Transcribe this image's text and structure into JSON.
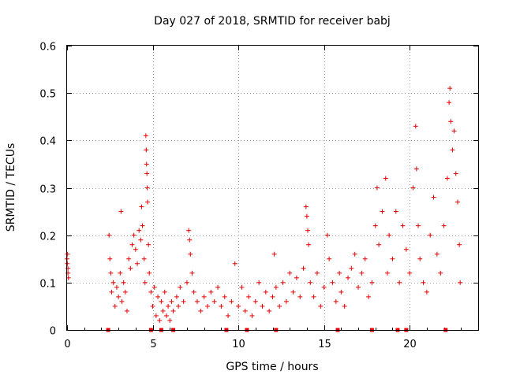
{
  "chart_data": {
    "type": "scatter",
    "title": "Day 027 of 2018, SRMTID for receiver babj",
    "xlabel": "GPS time / hours",
    "ylabel": "SRMTID / TECUs",
    "xlim": [
      0,
      24
    ],
    "ylim": [
      0,
      0.6
    ],
    "x_ticks": [
      0,
      5,
      10,
      15,
      20
    ],
    "y_ticks": [
      0,
      0.1,
      0.2,
      0.3,
      0.4,
      0.5,
      0.6
    ],
    "x_tick_labels": [
      "0",
      "5",
      "10",
      "15",
      "20"
    ],
    "y_tick_labels": [
      "0",
      "0.1",
      "0.2",
      "0.3",
      "0.4",
      "0.5",
      "0.6"
    ],
    "grid": true,
    "marker": "+",
    "marker_color": "#e60000",
    "series": [
      {
        "name": "SRMTID",
        "points": [
          [
            0.0,
            0.15
          ],
          [
            0.02,
            0.14
          ],
          [
            0.05,
            0.12
          ],
          [
            0.05,
            0.13
          ],
          [
            0.08,
            0.11
          ],
          [
            0.03,
            0.16
          ],
          [
            2.45,
            0.2
          ],
          [
            2.5,
            0.15
          ],
          [
            2.55,
            0.12
          ],
          [
            2.6,
            0.08
          ],
          [
            2.7,
            0.1
          ],
          [
            2.8,
            0.05
          ],
          [
            2.9,
            0.09
          ],
          [
            3.0,
            0.07
          ],
          [
            3.1,
            0.12
          ],
          [
            3.15,
            0.25
          ],
          [
            3.2,
            0.06
          ],
          [
            3.3,
            0.1
          ],
          [
            3.4,
            0.08
          ],
          [
            3.5,
            0.04
          ],
          [
            3.6,
            0.15
          ],
          [
            3.7,
            0.13
          ],
          [
            3.8,
            0.18
          ],
          [
            3.9,
            0.2
          ],
          [
            4.0,
            0.17
          ],
          [
            4.1,
            0.14
          ],
          [
            4.2,
            0.21
          ],
          [
            4.3,
            0.19
          ],
          [
            4.35,
            0.26
          ],
          [
            4.4,
            0.22
          ],
          [
            4.5,
            0.15
          ],
          [
            4.55,
            0.1
          ],
          [
            4.6,
            0.41
          ],
          [
            4.62,
            0.38
          ],
          [
            4.64,
            0.35
          ],
          [
            4.66,
            0.33
          ],
          [
            4.68,
            0.3
          ],
          [
            4.7,
            0.27
          ],
          [
            4.75,
            0.18
          ],
          [
            4.8,
            0.12
          ],
          [
            4.9,
            0.08
          ],
          [
            5.0,
            0.05
          ],
          [
            5.1,
            0.09
          ],
          [
            5.2,
            0.03
          ],
          [
            5.3,
            0.07
          ],
          [
            5.4,
            0.02
          ],
          [
            5.5,
            0.06
          ],
          [
            5.6,
            0.04
          ],
          [
            5.7,
            0.08
          ],
          [
            5.8,
            0.03
          ],
          [
            5.9,
            0.05
          ],
          [
            6.0,
            0.02
          ],
          [
            6.1,
            0.06
          ],
          [
            6.2,
            0.04
          ],
          [
            6.4,
            0.07
          ],
          [
            6.5,
            0.05
          ],
          [
            6.6,
            0.09
          ],
          [
            6.8,
            0.06
          ],
          [
            7.0,
            0.1
          ],
          [
            7.1,
            0.21
          ],
          [
            7.15,
            0.19
          ],
          [
            7.2,
            0.16
          ],
          [
            7.3,
            0.12
          ],
          [
            7.4,
            0.08
          ],
          [
            7.6,
            0.06
          ],
          [
            7.8,
            0.04
          ],
          [
            8.0,
            0.07
          ],
          [
            8.2,
            0.05
          ],
          [
            8.4,
            0.08
          ],
          [
            8.6,
            0.06
          ],
          [
            8.8,
            0.09
          ],
          [
            9.0,
            0.05
          ],
          [
            9.2,
            0.07
          ],
          [
            9.4,
            0.03
          ],
          [
            9.6,
            0.06
          ],
          [
            9.8,
            0.14
          ],
          [
            10.0,
            0.05
          ],
          [
            10.2,
            0.09
          ],
          [
            10.4,
            0.04
          ],
          [
            10.6,
            0.07
          ],
          [
            10.8,
            0.03
          ],
          [
            11.0,
            0.06
          ],
          [
            11.2,
            0.1
          ],
          [
            11.4,
            0.05
          ],
          [
            11.6,
            0.08
          ],
          [
            11.8,
            0.04
          ],
          [
            12.0,
            0.07
          ],
          [
            12.1,
            0.16
          ],
          [
            12.2,
            0.09
          ],
          [
            12.4,
            0.05
          ],
          [
            12.6,
            0.1
          ],
          [
            12.8,
            0.06
          ],
          [
            13.0,
            0.12
          ],
          [
            13.2,
            0.08
          ],
          [
            13.4,
            0.11
          ],
          [
            13.6,
            0.07
          ],
          [
            13.8,
            0.13
          ],
          [
            13.95,
            0.26
          ],
          [
            14.0,
            0.24
          ],
          [
            14.05,
            0.21
          ],
          [
            14.1,
            0.18
          ],
          [
            14.2,
            0.1
          ],
          [
            14.4,
            0.07
          ],
          [
            14.6,
            0.12
          ],
          [
            14.8,
            0.05
          ],
          [
            15.0,
            0.09
          ],
          [
            15.2,
            0.2
          ],
          [
            15.3,
            0.15
          ],
          [
            15.5,
            0.1
          ],
          [
            15.7,
            0.06
          ],
          [
            15.9,
            0.12
          ],
          [
            16.0,
            0.08
          ],
          [
            16.2,
            0.05
          ],
          [
            16.4,
            0.11
          ],
          [
            16.6,
            0.13
          ],
          [
            16.8,
            0.16
          ],
          [
            17.0,
            0.09
          ],
          [
            17.2,
            0.12
          ],
          [
            17.4,
            0.15
          ],
          [
            17.6,
            0.07
          ],
          [
            17.8,
            0.1
          ],
          [
            18.0,
            0.22
          ],
          [
            18.1,
            0.3
          ],
          [
            18.2,
            0.18
          ],
          [
            18.4,
            0.25
          ],
          [
            18.6,
            0.32
          ],
          [
            18.7,
            0.12
          ],
          [
            18.8,
            0.2
          ],
          [
            19.0,
            0.15
          ],
          [
            19.2,
            0.25
          ],
          [
            19.4,
            0.1
          ],
          [
            19.6,
            0.22
          ],
          [
            19.8,
            0.17
          ],
          [
            20.0,
            0.12
          ],
          [
            20.2,
            0.3
          ],
          [
            20.35,
            0.43
          ],
          [
            20.4,
            0.34
          ],
          [
            20.5,
            0.22
          ],
          [
            20.6,
            0.15
          ],
          [
            20.8,
            0.1
          ],
          [
            21.0,
            0.08
          ],
          [
            21.2,
            0.2
          ],
          [
            21.4,
            0.28
          ],
          [
            21.6,
            0.16
          ],
          [
            21.8,
            0.12
          ],
          [
            22.0,
            0.22
          ],
          [
            22.2,
            0.32
          ],
          [
            22.3,
            0.48
          ],
          [
            22.35,
            0.51
          ],
          [
            22.4,
            0.44
          ],
          [
            22.5,
            0.38
          ],
          [
            22.6,
            0.42
          ],
          [
            22.7,
            0.33
          ],
          [
            22.8,
            0.27
          ],
          [
            22.9,
            0.18
          ],
          [
            22.95,
            0.1
          ]
        ]
      }
    ],
    "zero_points_x": [
      2.4,
      4.9,
      5.5,
      6.2,
      9.3,
      10.5,
      12.2,
      15.8,
      17.8,
      19.3,
      19.8,
      22.1
    ]
  }
}
